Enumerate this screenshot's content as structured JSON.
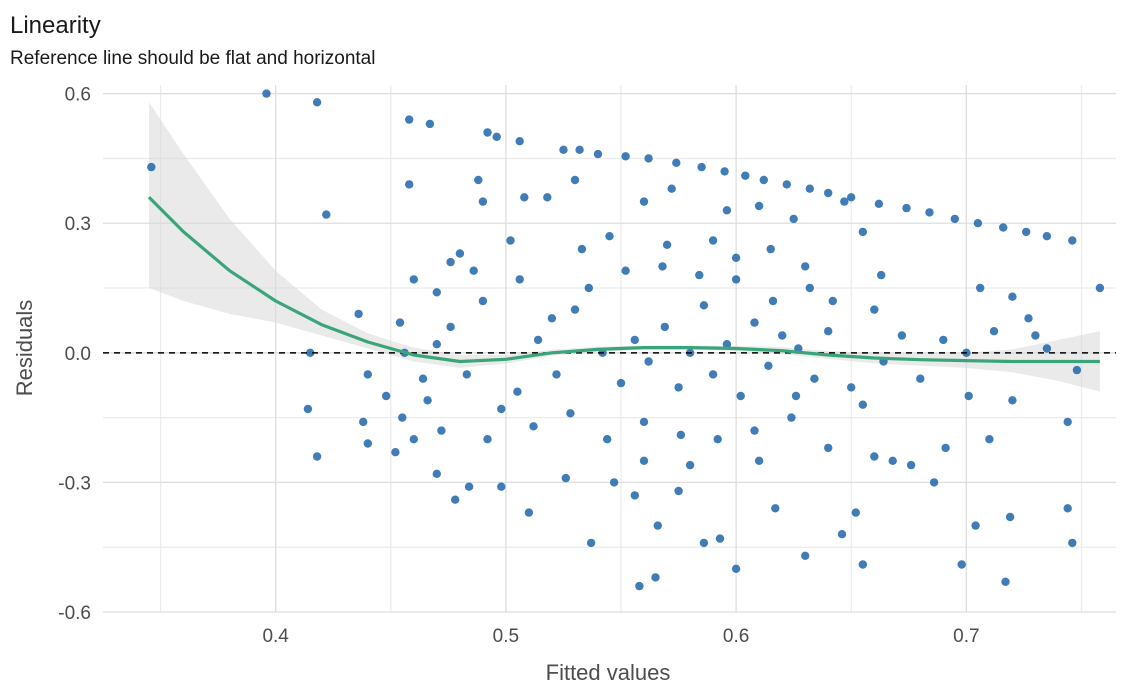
{
  "chart_data": {
    "type": "scatter",
    "title": "Linearity",
    "subtitle": "Reference line should be flat and horizontal",
    "xlabel": "Fitted values",
    "ylabel": "Residuals",
    "xlim": [
      0.325,
      0.765
    ],
    "ylim": [
      -0.6,
      0.62
    ],
    "x_ticks": [
      0.4,
      0.5,
      0.6,
      0.7
    ],
    "x_tick_labels": [
      "0.4",
      "0.5",
      "0.6",
      "0.7"
    ],
    "y_ticks": [
      -0.6,
      -0.3,
      0.0,
      0.3,
      0.6
    ],
    "y_tick_labels": [
      "-0.6",
      "-0.3",
      "0.0",
      "0.3",
      "0.6"
    ],
    "grid": true,
    "reference_line": {
      "y": 0.0,
      "style": "dashed"
    },
    "colors": {
      "points": "#1f65a8",
      "smooth": "#3aa57a",
      "ribbon": "#d9d9d9",
      "reference": "#000000"
    },
    "points": [
      [
        0.346,
        0.43
      ],
      [
        0.396,
        0.6
      ],
      [
        0.418,
        0.58
      ],
      [
        0.422,
        0.32
      ],
      [
        0.415,
        0.0
      ],
      [
        0.414,
        -0.13
      ],
      [
        0.418,
        -0.24
      ],
      [
        0.458,
        0.54
      ],
      [
        0.467,
        0.53
      ],
      [
        0.458,
        0.39
      ],
      [
        0.46,
        0.17
      ],
      [
        0.436,
        0.09
      ],
      [
        0.454,
        0.07
      ],
      [
        0.44,
        -0.21
      ],
      [
        0.492,
        0.51
      ],
      [
        0.496,
        0.5
      ],
      [
        0.506,
        0.49
      ],
      [
        0.49,
        0.35
      ],
      [
        0.488,
        0.4
      ],
      [
        0.48,
        0.23
      ],
      [
        0.476,
        0.21
      ],
      [
        0.525,
        0.47
      ],
      [
        0.532,
        0.47
      ],
      [
        0.54,
        0.46
      ],
      [
        0.552,
        0.455
      ],
      [
        0.562,
        0.45
      ],
      [
        0.574,
        0.44
      ],
      [
        0.585,
        0.43
      ],
      [
        0.595,
        0.42
      ],
      [
        0.604,
        0.41
      ],
      [
        0.612,
        0.4
      ],
      [
        0.622,
        0.39
      ],
      [
        0.632,
        0.38
      ],
      [
        0.64,
        0.37
      ],
      [
        0.65,
        0.36
      ],
      [
        0.662,
        0.345
      ],
      [
        0.674,
        0.335
      ],
      [
        0.684,
        0.325
      ],
      [
        0.695,
        0.31
      ],
      [
        0.705,
        0.3
      ],
      [
        0.716,
        0.29
      ],
      [
        0.726,
        0.28
      ],
      [
        0.735,
        0.27
      ],
      [
        0.746,
        0.26
      ],
      [
        0.758,
        0.15
      ],
      [
        0.744,
        -0.36
      ],
      [
        0.746,
        -0.44
      ],
      [
        0.744,
        -0.16
      ],
      [
        0.748,
        -0.04
      ],
      [
        0.727,
        0.08
      ],
      [
        0.73,
        0.04
      ],
      [
        0.735,
        0.01
      ],
      [
        0.72,
        0.13
      ],
      [
        0.72,
        -0.11
      ],
      [
        0.717,
        -0.53
      ],
      [
        0.719,
        -0.38
      ],
      [
        0.71,
        -0.2
      ],
      [
        0.704,
        -0.4
      ],
      [
        0.698,
        -0.49
      ],
      [
        0.701,
        -0.1
      ],
      [
        0.686,
        -0.3
      ],
      [
        0.691,
        -0.22
      ],
      [
        0.676,
        -0.26
      ],
      [
        0.668,
        -0.25
      ],
      [
        0.655,
        -0.12
      ],
      [
        0.652,
        -0.37
      ],
      [
        0.655,
        -0.49
      ],
      [
        0.646,
        -0.42
      ],
      [
        0.66,
        -0.24
      ],
      [
        0.663,
        0.18
      ],
      [
        0.655,
        0.28
      ],
      [
        0.647,
        0.35
      ],
      [
        0.615,
        0.24
      ],
      [
        0.632,
        0.15
      ],
      [
        0.642,
        0.12
      ],
      [
        0.626,
        -0.1
      ],
      [
        0.63,
        -0.47
      ],
      [
        0.617,
        -0.36
      ],
      [
        0.6,
        -0.5
      ],
      [
        0.593,
        -0.43
      ],
      [
        0.586,
        -0.44
      ],
      [
        0.575,
        -0.32
      ],
      [
        0.565,
        -0.52
      ],
      [
        0.558,
        -0.54
      ],
      [
        0.566,
        -0.4
      ],
      [
        0.556,
        -0.33
      ],
      [
        0.547,
        -0.3
      ],
      [
        0.537,
        -0.44
      ],
      [
        0.526,
        -0.29
      ],
      [
        0.51,
        -0.37
      ],
      [
        0.498,
        -0.31
      ],
      [
        0.484,
        -0.31
      ],
      [
        0.478,
        -0.34
      ],
      [
        0.492,
        -0.2
      ],
      [
        0.46,
        -0.2
      ],
      [
        0.47,
        -0.28
      ],
      [
        0.455,
        -0.15
      ],
      [
        0.44,
        -0.05
      ],
      [
        0.448,
        -0.1
      ],
      [
        0.466,
        -0.11
      ],
      [
        0.47,
        0.02
      ],
      [
        0.483,
        -0.05
      ],
      [
        0.505,
        -0.09
      ],
      [
        0.512,
        -0.17
      ],
      [
        0.52,
        0.08
      ],
      [
        0.53,
        0.1
      ],
      [
        0.542,
        0.0
      ],
      [
        0.55,
        -0.07
      ],
      [
        0.556,
        0.03
      ],
      [
        0.562,
        -0.02
      ],
      [
        0.569,
        0.06
      ],
      [
        0.575,
        -0.08
      ],
      [
        0.58,
        0.0
      ],
      [
        0.586,
        0.11
      ],
      [
        0.59,
        -0.05
      ],
      [
        0.596,
        0.02
      ],
      [
        0.602,
        -0.1
      ],
      [
        0.608,
        0.07
      ],
      [
        0.614,
        -0.03
      ],
      [
        0.62,
        0.04
      ],
      [
        0.627,
        0.01
      ],
      [
        0.634,
        -0.06
      ],
      [
        0.64,
        0.05
      ],
      [
        0.528,
        -0.14
      ],
      [
        0.536,
        0.15
      ],
      [
        0.544,
        -0.2
      ],
      [
        0.552,
        0.19
      ],
      [
        0.56,
        -0.16
      ],
      [
        0.568,
        0.2
      ],
      [
        0.576,
        -0.19
      ],
      [
        0.584,
        0.18
      ],
      [
        0.592,
        -0.2
      ],
      [
        0.6,
        0.17
      ],
      [
        0.608,
        -0.18
      ],
      [
        0.616,
        0.12
      ],
      [
        0.624,
        -0.15
      ],
      [
        0.49,
        0.12
      ],
      [
        0.498,
        -0.13
      ],
      [
        0.506,
        0.17
      ],
      [
        0.514,
        0.03
      ],
      [
        0.522,
        -0.05
      ],
      [
        0.533,
        0.24
      ],
      [
        0.545,
        0.27
      ],
      [
        0.57,
        0.25
      ],
      [
        0.59,
        0.26
      ],
      [
        0.6,
        0.22
      ],
      [
        0.58,
        -0.26
      ],
      [
        0.56,
        -0.25
      ],
      [
        0.61,
        -0.25
      ],
      [
        0.64,
        -0.22
      ],
      [
        0.664,
        -0.02
      ],
      [
        0.672,
        0.04
      ],
      [
        0.68,
        -0.06
      ],
      [
        0.69,
        0.03
      ],
      [
        0.7,
        0.0
      ],
      [
        0.706,
        0.15
      ],
      [
        0.712,
        0.05
      ],
      [
        0.66,
        0.1
      ],
      [
        0.65,
        -0.08
      ],
      [
        0.63,
        0.2
      ],
      [
        0.502,
        0.26
      ],
      [
        0.508,
        0.36
      ],
      [
        0.518,
        0.36
      ],
      [
        0.53,
        0.4
      ],
      [
        0.56,
        0.35
      ],
      [
        0.572,
        0.38
      ],
      [
        0.596,
        0.33
      ],
      [
        0.61,
        0.34
      ],
      [
        0.625,
        0.31
      ],
      [
        0.476,
        0.06
      ],
      [
        0.464,
        -0.06
      ],
      [
        0.472,
        -0.18
      ],
      [
        0.456,
        0.0
      ],
      [
        0.452,
        -0.23
      ],
      [
        0.438,
        -0.16
      ],
      [
        0.47,
        0.14
      ],
      [
        0.486,
        0.19
      ]
    ],
    "smooth_line": [
      [
        0.345,
        0.36
      ],
      [
        0.36,
        0.28
      ],
      [
        0.38,
        0.19
      ],
      [
        0.4,
        0.12
      ],
      [
        0.42,
        0.065
      ],
      [
        0.44,
        0.025
      ],
      [
        0.46,
        -0.005
      ],
      [
        0.48,
        -0.02
      ],
      [
        0.5,
        -0.015
      ],
      [
        0.52,
        0.0
      ],
      [
        0.54,
        0.008
      ],
      [
        0.56,
        0.012
      ],
      [
        0.58,
        0.012
      ],
      [
        0.6,
        0.01
      ],
      [
        0.62,
        0.005
      ],
      [
        0.64,
        -0.005
      ],
      [
        0.66,
        -0.012
      ],
      [
        0.68,
        -0.016
      ],
      [
        0.7,
        -0.018
      ],
      [
        0.72,
        -0.02
      ],
      [
        0.74,
        -0.02
      ],
      [
        0.758,
        -0.02
      ]
    ],
    "ribbon": [
      [
        0.345,
        0.15,
        0.58
      ],
      [
        0.36,
        0.12,
        0.46
      ],
      [
        0.38,
        0.09,
        0.31
      ],
      [
        0.4,
        0.07,
        0.19
      ],
      [
        0.42,
        0.04,
        0.1
      ],
      [
        0.44,
        0.01,
        0.045
      ],
      [
        0.46,
        -0.02,
        0.012
      ],
      [
        0.48,
        -0.035,
        -0.005
      ],
      [
        0.5,
        -0.025,
        -0.005
      ],
      [
        0.52,
        -0.007,
        0.007
      ],
      [
        0.54,
        0.002,
        0.014
      ],
      [
        0.56,
        0.007,
        0.017
      ],
      [
        0.58,
        0.007,
        0.017
      ],
      [
        0.6,
        0.004,
        0.016
      ],
      [
        0.62,
        -0.003,
        0.013
      ],
      [
        0.64,
        -0.014,
        0.004
      ],
      [
        0.66,
        -0.024,
        0.0
      ],
      [
        0.68,
        -0.03,
        -0.002
      ],
      [
        0.7,
        -0.035,
        0.0
      ],
      [
        0.72,
        -0.045,
        0.008
      ],
      [
        0.74,
        -0.065,
        0.03
      ],
      [
        0.758,
        -0.09,
        0.05
      ]
    ]
  }
}
